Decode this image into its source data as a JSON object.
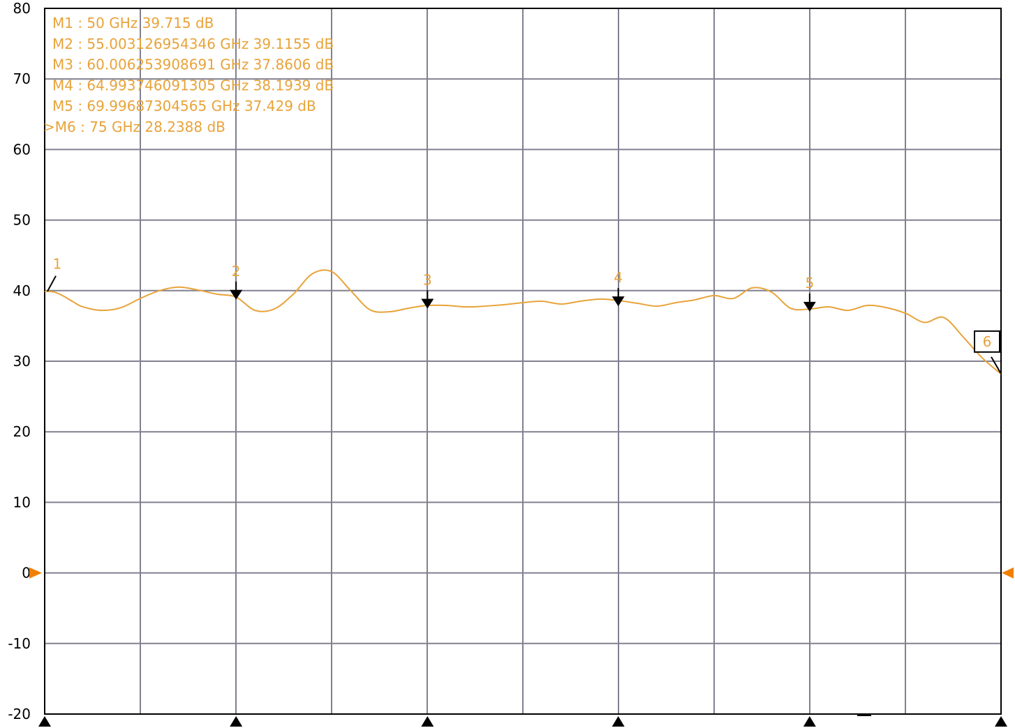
{
  "chart_data": {
    "type": "line",
    "x_unit": "GHz",
    "y_unit": "dB",
    "xlim": [
      50,
      75
    ],
    "ylim": [
      -20,
      80
    ],
    "y_ticks": [
      80,
      70,
      60,
      50,
      40,
      30,
      20,
      10,
      0,
      -10,
      -20
    ],
    "x_gridlines": 10,
    "grid": true,
    "reference_level": 0,
    "series": [
      {
        "color": "#e8a33a",
        "x": [
          50,
          50.25,
          50.5,
          50.75,
          51,
          51.5,
          52,
          52.5,
          53,
          53.5,
          54,
          54.5,
          55,
          55.5,
          56,
          56.5,
          57,
          57.5,
          58,
          58.5,
          59,
          59.5,
          60,
          60.5,
          61,
          61.5,
          62,
          62.5,
          63,
          63.5,
          64,
          64.5,
          65,
          65.5,
          66,
          66.5,
          67,
          67.5,
          68,
          68.5,
          69,
          69.5,
          70,
          70.5,
          71,
          71.5,
          72,
          72.5,
          73,
          73.5,
          74,
          74.5,
          75
        ],
        "y": [
          39.9,
          39.8,
          39.2,
          38.4,
          37.7,
          37.2,
          37.6,
          38.9,
          40.0,
          40.5,
          40.1,
          39.5,
          39.1,
          37.2,
          37.4,
          39.5,
          42.4,
          42.7,
          40.0,
          37.3,
          37.0,
          37.5,
          37.9,
          37.9,
          37.7,
          37.8,
          38.0,
          38.3,
          38.5,
          38.1,
          38.5,
          38.8,
          38.6,
          38.2,
          37.8,
          38.3,
          38.7,
          39.3,
          38.9,
          40.4,
          39.8,
          37.5,
          37.4,
          37.7,
          37.2,
          37.9,
          37.6,
          36.8,
          35.5,
          36.2,
          33.5,
          30.5,
          28.2
        ]
      }
    ],
    "markers": [
      {
        "id": "1",
        "readout": "M1 :  50 GHz  39.715  dB",
        "x": 50,
        "y": 39.715,
        "style": "line"
      },
      {
        "id": "2",
        "readout": "M2 :  55.003126954346 GHz  39.1155  dB",
        "x": 55.003126954346,
        "y": 39.1155,
        "style": "arrow"
      },
      {
        "id": "3",
        "readout": "M3 :  60.006253908691 GHz  37.8606  dB",
        "x": 60.006253908691,
        "y": 37.8606,
        "style": "arrow"
      },
      {
        "id": "4",
        "readout": "M4 :  64.993746091305 GHz  38.1939  dB",
        "x": 64.993746091305,
        "y": 38.1939,
        "style": "arrow"
      },
      {
        "id": "5",
        "readout": "M5 :  69.99687304565 GHz  37.429  dB",
        "x": 69.99687304565,
        "y": 37.429,
        "style": "arrow"
      },
      {
        "id": "6",
        "readout": ">M6 :  75 GHz  28.2388  dB",
        "x": 75,
        "y": 28.2388,
        "style": "box"
      }
    ]
  },
  "colors": {
    "trace": "#e8a33a",
    "grid": "#808090",
    "frame": "#000000",
    "reference_arrow": "#f08000"
  }
}
